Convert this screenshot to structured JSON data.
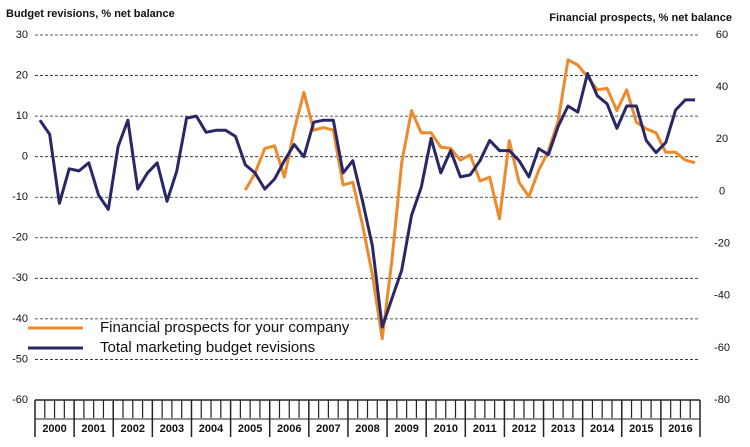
{
  "chart_data": {
    "type": "line",
    "y_label": "Budget revisions, % net balance",
    "y2_label": "Financial prospects, % net balance",
    "years": [
      "2000",
      "2001",
      "2002",
      "2003",
      "2004",
      "2005",
      "2006",
      "2007",
      "2008",
      "2009",
      "2010",
      "2011",
      "2012",
      "2013",
      "2014",
      "2015",
      "2016"
    ],
    "quarters_per_year": 4,
    "ylim": [
      -60,
      30
    ],
    "yticks": [
      -60,
      -50,
      -40,
      -30,
      -20,
      -10,
      0,
      10,
      20,
      30
    ],
    "y2lim": [
      -80,
      60
    ],
    "y2ticks": [
      -80,
      -60,
      -40,
      -20,
      0,
      20,
      40,
      60
    ],
    "grid": true,
    "legend": "lower-left",
    "series": [
      {
        "name": "Financial prospects for your company",
        "color": "#ec8a2c",
        "axis": "y2",
        "values": [
          null,
          null,
          null,
          null,
          null,
          null,
          null,
          null,
          null,
          null,
          null,
          null,
          null,
          null,
          null,
          null,
          null,
          null,
          null,
          null,
          null,
          0.5,
          7,
          16.5,
          17.5,
          5.5,
          23.5,
          38,
          23.5,
          24.5,
          23.5,
          2.5,
          3.5,
          -13,
          -32,
          -56.5,
          -26.5,
          11,
          31,
          22.5,
          22.5,
          17,
          16.5,
          12,
          14,
          4,
          5.5,
          -10.5,
          19.5,
          3.5,
          -2,
          8,
          15.5,
          27,
          50.5,
          48.5,
          44,
          39,
          39.5,
          31,
          39,
          26.5,
          24,
          22.5,
          15,
          15,
          12,
          11
        ]
      },
      {
        "name": "Total marketing budget revisions",
        "color": "#2a2766",
        "values": [
          9,
          5.5,
          -11.5,
          -3,
          -3.5,
          -1.5,
          -9.5,
          -13,
          2.5,
          9,
          -8,
          -4,
          -1.5,
          -11,
          -3.5,
          9.5,
          10,
          6,
          6.5,
          6.5,
          5,
          -2,
          -4,
          -8,
          -5.5,
          -1,
          3,
          0,
          8.5,
          9,
          9,
          -4,
          -1,
          -11,
          -22,
          -42,
          -35,
          -28,
          -14.5,
          -7.5,
          4.5,
          -4,
          1.5,
          -5,
          -4.5,
          -1,
          4,
          1.5,
          1.5,
          -1,
          -5,
          2,
          0.5,
          7.5,
          12.5,
          11,
          20.5,
          15,
          13,
          7,
          12.5,
          12.5,
          4,
          1,
          3.5,
          11.5,
          14,
          14
        ]
      }
    ]
  }
}
